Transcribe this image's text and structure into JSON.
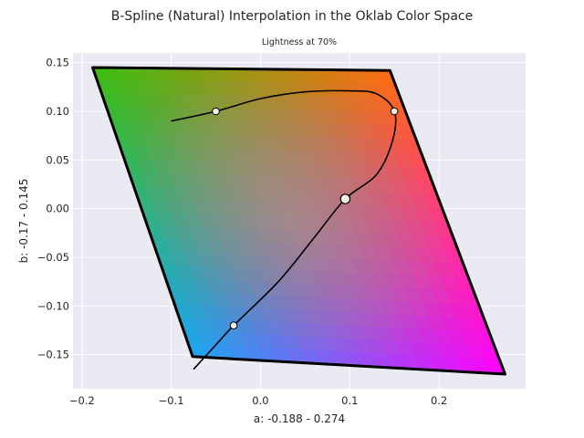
{
  "chart_data": {
    "type": "line",
    "title": "B-Spline (Natural) Interpolation in the Oklab Color Space",
    "subtitle": "Lightness at 70%",
    "xlabel": "a: -0.188 - 0.274",
    "ylabel": "b: -0.17 - 0.145",
    "xlim": [
      -0.21,
      0.297
    ],
    "ylim": [
      -0.185,
      0.16
    ],
    "x_ticks": [
      -0.2,
      -0.1,
      0.0,
      0.1,
      0.2
    ],
    "x_tick_labels": [
      "−0.2",
      "−0.1",
      "0.0",
      "0.1",
      "0.2"
    ],
    "y_ticks": [
      -0.15,
      -0.1,
      -0.05,
      0.0,
      0.05,
      0.1,
      0.15
    ],
    "y_tick_labels": [
      "−0.15",
      "−0.10",
      "−0.05",
      "0.00",
      "0.05",
      "0.10",
      "0.15"
    ],
    "grid": true,
    "background": "#eaeaf2",
    "gamut_boundary": {
      "x": [
        -0.188,
        0.145,
        0.274,
        0.274,
        -0.076,
        -0.188
      ],
      "y": [
        0.145,
        0.142,
        -0.17,
        -0.17,
        -0.152,
        0.145
      ],
      "corner_colors": {
        "top_left": "#3cbf10",
        "top_right": "#ff6e0f",
        "bottom_right": "#ff00ff",
        "bottom_left": "#1aa8f4",
        "center": "#b3968f"
      }
    },
    "series": [
      {
        "x": [
          -0.1,
          -0.05,
          0.0,
          0.05,
          0.1,
          0.13,
          0.15,
          0.148,
          0.13,
          0.095,
          0.06,
          0.02,
          -0.03,
          -0.05,
          -0.075
        ],
        "y": [
          0.09,
          0.1,
          0.113,
          0.12,
          0.121,
          0.118,
          0.1,
          0.07,
          0.035,
          0.01,
          -0.03,
          -0.075,
          -0.12,
          -0.14,
          -0.165
        ],
        "color": "#000000"
      }
    ],
    "control_points": {
      "x": [
        -0.05,
        0.15,
        0.095,
        -0.03
      ],
      "y": [
        0.1,
        0.1,
        0.01,
        -0.12
      ],
      "marker_face": "#f5f0e6",
      "marker_edge": "#000000"
    },
    "midpoint_marker": {
      "x": 0.095,
      "y": 0.01
    }
  }
}
